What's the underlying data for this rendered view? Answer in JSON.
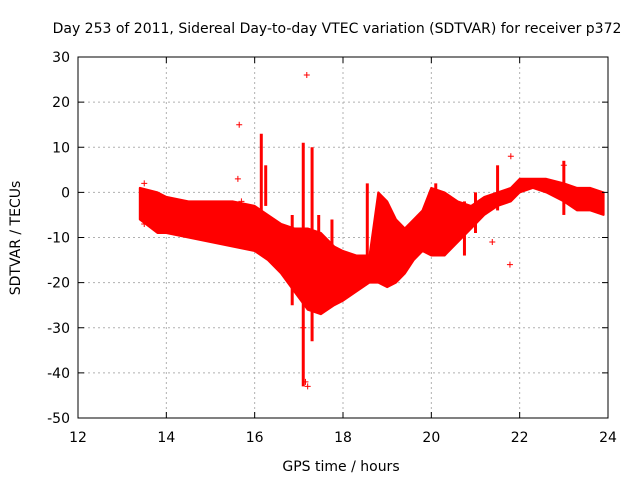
{
  "chart_data": {
    "type": "scatter",
    "title": "Day 253 of 2011, Sidereal Day-to-day VTEC variation (SDTVAR) for receiver p372",
    "xlabel": "GPS time / hours",
    "ylabel": "SDTVAR / TECUs",
    "xlim": [
      12,
      24
    ],
    "ylim": [
      -50,
      30
    ],
    "grid": true,
    "color": "#ff0000",
    "marker": "+",
    "x_ticks": [
      "12",
      "14",
      "16",
      "18",
      "20",
      "22",
      "24"
    ],
    "y_ticks": [
      "30",
      "20",
      "10",
      "0",
      "-10",
      "-20",
      "-30",
      "-40",
      "-50"
    ],
    "envelope": {
      "x": [
        13.4,
        13.8,
        14.0,
        14.5,
        15.0,
        15.5,
        16.0,
        16.3,
        16.6,
        16.9,
        17.2,
        17.5,
        17.8,
        18.0,
        18.3,
        18.6,
        18.8,
        19.0,
        19.2,
        19.4,
        19.6,
        19.8,
        20.0,
        20.3,
        20.6,
        20.9,
        21.2,
        21.5,
        21.8,
        22.0,
        22.3,
        22.6,
        23.0,
        23.3,
        23.6,
        23.9
      ],
      "top": [
        1,
        0,
        -1,
        -2,
        -2,
        -2,
        -3,
        -5,
        -7,
        -8,
        -8,
        -9,
        -12,
        -13,
        -14,
        -14,
        0,
        -2,
        -6,
        -8,
        -6,
        -4,
        1,
        0,
        -2,
        -3,
        -1,
        0,
        1,
        3,
        3,
        3,
        2,
        1,
        1,
        0
      ],
      "bottom": [
        -6,
        -9,
        -9,
        -10,
        -11,
        -12,
        -13,
        -15,
        -18,
        -22,
        -26,
        -27,
        -25,
        -24,
        -22,
        -20,
        -20,
        -21,
        -20,
        -18,
        -15,
        -13,
        -14,
        -14,
        -11,
        -8,
        -5,
        -3,
        -2,
        0,
        1,
        0,
        -2,
        -4,
        -4,
        -5
      ]
    },
    "spikes": [
      {
        "x": 16.15,
        "top": 13,
        "bottom": -5
      },
      {
        "x": 16.25,
        "top": 6,
        "bottom": -3
      },
      {
        "x": 16.85,
        "top": -5,
        "bottom": -25
      },
      {
        "x": 17.1,
        "top": 11,
        "bottom": -43
      },
      {
        "x": 17.3,
        "top": 10,
        "bottom": -33
      },
      {
        "x": 17.45,
        "top": -5,
        "bottom": -25
      },
      {
        "x": 17.75,
        "top": -6,
        "bottom": -22
      },
      {
        "x": 18.55,
        "top": 2,
        "bottom": -20
      },
      {
        "x": 19.7,
        "top": -5,
        "bottom": -12
      },
      {
        "x": 20.1,
        "top": 2,
        "bottom": -12
      },
      {
        "x": 20.75,
        "top": -2,
        "bottom": -14
      },
      {
        "x": 21.0,
        "top": 0,
        "bottom": -9
      },
      {
        "x": 21.5,
        "top": 6,
        "bottom": -4
      },
      {
        "x": 23.0,
        "top": 7,
        "bottom": -5
      }
    ],
    "outliers": [
      {
        "x": 17.18,
        "y": 26
      },
      {
        "x": 15.65,
        "y": 15
      },
      {
        "x": 15.62,
        "y": 3
      },
      {
        "x": 15.7,
        "y": -2
      },
      {
        "x": 17.05,
        "y": -23
      },
      {
        "x": 17.1,
        "y": -30
      },
      {
        "x": 17.15,
        "y": -42
      },
      {
        "x": 17.2,
        "y": -43
      },
      {
        "x": 21.8,
        "y": 8
      },
      {
        "x": 21.38,
        "y": -11
      },
      {
        "x": 21.78,
        "y": -16
      },
      {
        "x": 13.5,
        "y": 2
      },
      {
        "x": 13.5,
        "y": -7
      },
      {
        "x": 23.0,
        "y": 6
      },
      {
        "x": 16.9,
        "y": -10
      }
    ]
  }
}
